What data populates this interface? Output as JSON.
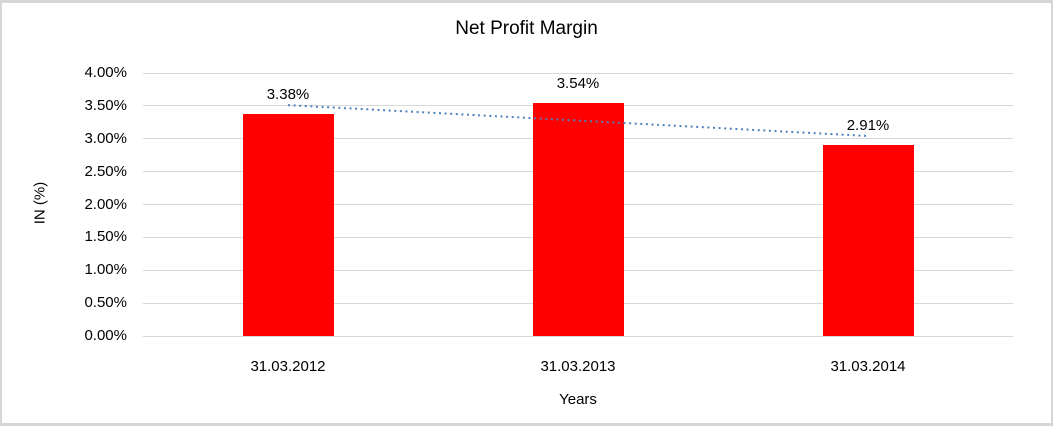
{
  "chart_data": {
    "type": "bar",
    "title": "Net Profit Margin",
    "xlabel": "Years",
    "ylabel": "IN (%)",
    "categories": [
      "31.03.2012",
      "31.03.2013",
      "31.03.2014"
    ],
    "series": [
      {
        "name": "Net Profit Margin",
        "values": [
          3.38,
          3.54,
          2.91
        ]
      }
    ],
    "data_labels": [
      "3.38%",
      "3.54%",
      "2.91%"
    ],
    "ylim": [
      0,
      4
    ],
    "ytick_step": 0.5,
    "ytick_labels": [
      "0.00%",
      "0.50%",
      "1.00%",
      "1.50%",
      "2.00%",
      "2.50%",
      "3.00%",
      "3.50%",
      "4.00%"
    ],
    "grid": true,
    "legend": "none",
    "trendline": {
      "type": "linear",
      "style": "dotted",
      "applies_to": "Net Profit Margin"
    },
    "colors": {
      "bar": "#FF0000",
      "trendline": "#4F81BD",
      "gridline": "#D9D9D9",
      "text": "#000000",
      "frame_border": "#D6D6D6",
      "background": "#FFFFFF"
    }
  }
}
